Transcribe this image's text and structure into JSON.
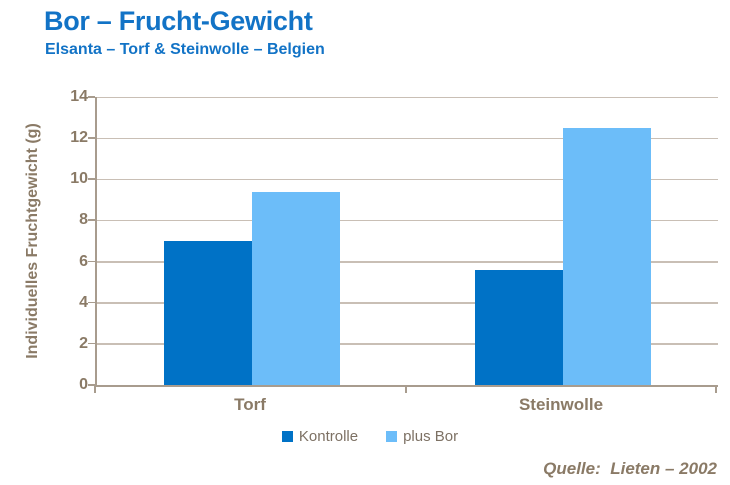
{
  "slide": {
    "title": "Bor – Frucht-Gewicht",
    "subtitle": "Elsanta – Torf & Steinwolle – Belgien",
    "source": "Quelle:  Lieten – 2002"
  },
  "colors": {
    "title_blue": "#1273C6",
    "series_kontrolle": "#0072C6",
    "series_plus_bor": "#6CBDF9",
    "axis_text_brown": "#8A7A66",
    "gridline_gray": "#C9BFB5",
    "axis_line_gray": "#A89C8E",
    "legend_text_gray": "#7D7164"
  },
  "chart_data": {
    "type": "bar",
    "title": "Bor – Frucht-Gewicht",
    "subtitle": "Elsanta – Torf & Steinwolle – Belgien",
    "categories": [
      "Torf",
      "Steinwolle"
    ],
    "series": [
      {
        "name": "Kontrolle",
        "color": "#0072C6",
        "values": [
          7.0,
          5.6
        ]
      },
      {
        "name": "plus Bor",
        "color": "#6CBDF9",
        "values": [
          9.4,
          12.5
        ]
      }
    ],
    "xlabel": "",
    "ylabel": "Individuelles Fruchtgewicht (g)",
    "ylim": [
      0,
      14
    ],
    "yticks": [
      0,
      2,
      4,
      6,
      8,
      10,
      12,
      14
    ],
    "grid": true,
    "legend_position": "bottom",
    "annotation": "Quelle:  Lieten – 2002"
  }
}
